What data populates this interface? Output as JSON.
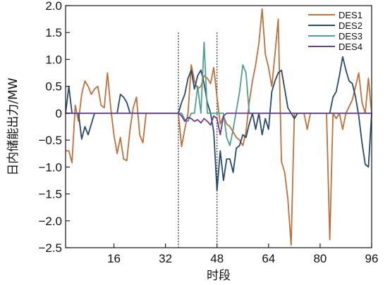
{
  "chart_data": {
    "type": "line",
    "xlabel": "时段",
    "ylabel": "日内储能出力/MW",
    "xlim": [
      1,
      96
    ],
    "ylim": [
      -2.5,
      2.0
    ],
    "xticks": [
      16,
      32,
      48,
      64,
      80,
      96
    ],
    "xtick_labels": [
      "16",
      "32",
      "48",
      "64",
      "80",
      "96"
    ],
    "yticks": [
      -2.5,
      -2.0,
      -1.5,
      -1.0,
      -0.5,
      0,
      0.5,
      1.0,
      1.5,
      2.0
    ],
    "ytick_labels": [
      "−2.5",
      "−2.0",
      "−1.5",
      "−1.0",
      "−0.5",
      "0",
      "0.5",
      "1.0",
      "1.5",
      "2.0"
    ],
    "grid": false,
    "legend_position": "top-right",
    "vlines": [
      36,
      48
    ],
    "x": [
      1,
      2,
      3,
      4,
      5,
      6,
      7,
      8,
      9,
      10,
      11,
      12,
      13,
      14,
      15,
      16,
      17,
      18,
      19,
      20,
      21,
      22,
      23,
      24,
      25,
      26,
      27,
      28,
      29,
      30,
      31,
      32,
      33,
      34,
      35,
      36,
      37,
      38,
      39,
      40,
      41,
      42,
      43,
      44,
      45,
      46,
      47,
      48,
      49,
      50,
      51,
      52,
      53,
      54,
      55,
      56,
      57,
      58,
      59,
      60,
      61,
      62,
      63,
      64,
      65,
      66,
      67,
      68,
      69,
      70,
      71,
      72,
      73,
      74,
      75,
      76,
      77,
      78,
      79,
      80,
      81,
      82,
      83,
      84,
      85,
      86,
      87,
      88,
      89,
      90,
      91,
      92,
      93,
      94,
      95,
      96
    ],
    "series": [
      {
        "name": "DES1",
        "color": "#C0703A",
        "values": [
          -0.7,
          -0.7,
          -0.92,
          0.15,
          -0.15,
          0.35,
          0.6,
          0.5,
          0.35,
          0.45,
          0.5,
          0.15,
          0.1,
          0.75,
          0.1,
          -0.4,
          -0.75,
          -0.45,
          -0.85,
          -0.88,
          -0.3,
          0.1,
          0.3,
          -0.4,
          -0.55,
          0,
          0,
          0,
          0,
          0,
          0,
          0,
          0,
          0,
          0,
          0,
          -0.62,
          -0.3,
          0.0,
          0.9,
          0.6,
          0.45,
          0.5,
          0.7,
          0.65,
          0.55,
          0.85,
          0.3,
          -0.2,
          -0.05,
          -0.2,
          -0.25,
          -0.35,
          -0.45,
          -0.5,
          -0.6,
          -0.35,
          0.2,
          0.6,
          0.9,
          1.3,
          1.94,
          1.1,
          0.85,
          0.5,
          1.1,
          1.75,
          -0.9,
          -1.1,
          -1.6,
          -2.45,
          0,
          0,
          0,
          0,
          -0.3,
          0,
          0,
          0,
          0,
          0,
          0,
          -2.35,
          0,
          -0.1,
          0,
          -0.3,
          0,
          0.12,
          0.25,
          0.5,
          0.75,
          0.2,
          0,
          0.65,
          0.0
        ]
      },
      {
        "name": "DES2",
        "color": "#28496E",
        "values": [
          0.0,
          0.5,
          0.0,
          0.0,
          0.0,
          -0.48,
          -0.25,
          -0.4,
          -0.2,
          0.0,
          0.0,
          0.0,
          0.0,
          0.0,
          0.0,
          0.0,
          0.0,
          0.35,
          0.3,
          0.2,
          0.0,
          0.0,
          0.0,
          0.0,
          0.0,
          0.0,
          0.0,
          0.0,
          0.0,
          0.0,
          0.0,
          0.0,
          0.0,
          0.0,
          0.0,
          0.0,
          0.2,
          0.35,
          0.65,
          0.8,
          0.45,
          0.7,
          0.8,
          0.55,
          0.2,
          0.0,
          -0.35,
          -1.44,
          -0.7,
          -1.25,
          -0.85,
          -0.85,
          -1.1,
          -0.65,
          -0.6,
          -0.4,
          -0.45,
          -0.2,
          0.0,
          -0.3,
          0.0,
          -0.4,
          -0.1,
          -0.3,
          0.4,
          0.6,
          0.75,
          0.8,
          0.45,
          0.1,
          0.0,
          -0.1,
          0.0,
          0.0,
          0.0,
          0.0,
          0.0,
          0.0,
          0.0,
          0.0,
          0.0,
          0.0,
          0.0,
          0.3,
          0.4,
          0.7,
          1.05,
          0.8,
          0.6,
          0.55,
          0.3,
          -0.05,
          -0.55,
          -0.95,
          -1.0,
          0.0
        ]
      },
      {
        "name": "DES3",
        "color": "#4FA08E",
        "values": [
          0.0,
          0.0,
          0.0,
          0.0,
          0.0,
          0.0,
          0.0,
          0.0,
          0.0,
          0.0,
          0.0,
          0.0,
          0.0,
          0.0,
          0.0,
          0.0,
          0.0,
          0.0,
          0.0,
          0.0,
          0.0,
          0.0,
          0.0,
          0.0,
          0.0,
          0.0,
          0.0,
          0.0,
          0.0,
          0.0,
          0.0,
          0.0,
          0.0,
          0.0,
          0.0,
          0.0,
          0.0,
          -0.12,
          -0.15,
          0.0,
          0.0,
          0.5,
          0.0,
          1.32,
          0.0,
          0.0,
          0.0,
          0.0,
          0.0,
          0.0,
          -0.45,
          -0.6,
          -0.3,
          0.05,
          0.4,
          0.9,
          0.75,
          0.0,
          0.0,
          0.0,
          0.0,
          0.0,
          0.0,
          0.0,
          0.0,
          0.0,
          0.0,
          0.0,
          0.0,
          0.0,
          0.0,
          0.0,
          0.0,
          0.0,
          0.0,
          0.0,
          0.0,
          0.0,
          0.0,
          0.0,
          0.0,
          0.0,
          0.0,
          0.0,
          0.0,
          0.0,
          0.0,
          0.0,
          0.0,
          0.0,
          0.0,
          0.0,
          0.0,
          0.0,
          0.0,
          0.0
        ]
      },
      {
        "name": "DES4",
        "color": "#6A3D96",
        "values": [
          0.0,
          0.0,
          0.0,
          0.0,
          0.0,
          0.0,
          0.0,
          0.0,
          0.0,
          0.0,
          0.0,
          0.0,
          0.0,
          0.0,
          0.0,
          0.0,
          0.0,
          0.0,
          0.0,
          0.0,
          0.0,
          0.0,
          0.0,
          0.0,
          0.0,
          0.0,
          0.0,
          0.0,
          0.0,
          0.0,
          0.0,
          0.0,
          0.0,
          0.0,
          0.0,
          0.0,
          -0.05,
          -0.15,
          -0.08,
          -0.1,
          -0.15,
          -0.12,
          -0.18,
          -0.1,
          -0.15,
          -0.22,
          -0.05,
          -0.1,
          -0.4,
          -0.05,
          0.0,
          0.0,
          0.0,
          0.0,
          0.0,
          0.0,
          0.0,
          0.0,
          0.0,
          0.0,
          0.0,
          0.0,
          0.0,
          0.0,
          0.0,
          0.0,
          0.0,
          0.0,
          0.0,
          0.0,
          0.0,
          0.0,
          0.0,
          0.0,
          0.0,
          0.0,
          0.0,
          0.0,
          0.0,
          0.0,
          0.0,
          0.0,
          0.0,
          0.0,
          0.0,
          0.0,
          0.0,
          0.0,
          0.0,
          0.0,
          0.0,
          0.0,
          0.0,
          0.0,
          0.0,
          0.0
        ]
      }
    ]
  }
}
